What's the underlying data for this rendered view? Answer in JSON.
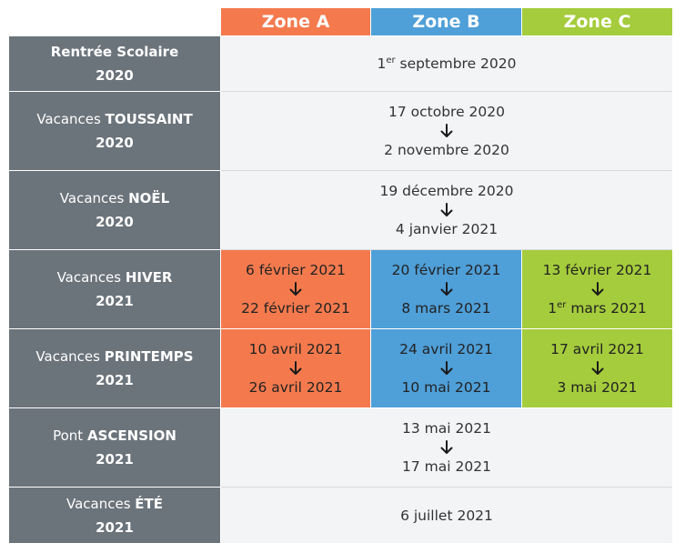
{
  "colors": {
    "zone_a": "#f47a4e",
    "zone_b": "#4f9fd8",
    "zone_c": "#a5cc3c",
    "label_bg": "#6b737b",
    "row_bg": "#f2f4f5"
  },
  "header": {
    "zones": [
      "Zone A",
      "Zone B",
      "Zone C"
    ]
  },
  "rows": [
    {
      "label_pre": "",
      "label_bold": "Rentrée Scolaire",
      "year": "2020",
      "common": {
        "day": "1",
        "sup": "er",
        "rest": " septembre 2020"
      }
    },
    {
      "label_pre": "Vacances ",
      "label_bold": "TOUSSAINT",
      "year": "2020",
      "common": {
        "start": "17 octobre 2020",
        "end": "2 novembre 2020"
      }
    },
    {
      "label_pre": "Vacances ",
      "label_bold": "NOËL",
      "year": "2020",
      "common": {
        "start": "19 décembre 2020",
        "end": "4 janvier 2021"
      }
    },
    {
      "label_pre": "Vacances ",
      "label_bold": "HIVER",
      "year": "2021",
      "zones": [
        {
          "start": "6 février 2021",
          "end": "22 février 2021"
        },
        {
          "start": "20 février 2021",
          "end": "8 mars 2021"
        },
        {
          "start": "13 février 2021",
          "end_day": "1",
          "end_sup": "er",
          "end_rest": " mars 2021"
        }
      ]
    },
    {
      "label_pre": "Vacances ",
      "label_bold": "PRINTEMPS",
      "year": "2021",
      "zones": [
        {
          "start": "10 avril 2021",
          "end": "26 avril 2021"
        },
        {
          "start": "24 avril 2021",
          "end": "10 mai 2021"
        },
        {
          "start": "17 avril 2021",
          "end": "3 mai 2021"
        }
      ]
    },
    {
      "label_pre": "Pont ",
      "label_bold": "ASCENSION",
      "year": "2021",
      "common": {
        "start": "13 mai 2021",
        "end": "17 mai 2021"
      }
    },
    {
      "label_pre": "Vacances ",
      "label_bold": "ÉTÉ",
      "year": "2021",
      "common": {
        "date": "6 juillet 2021"
      }
    }
  ]
}
